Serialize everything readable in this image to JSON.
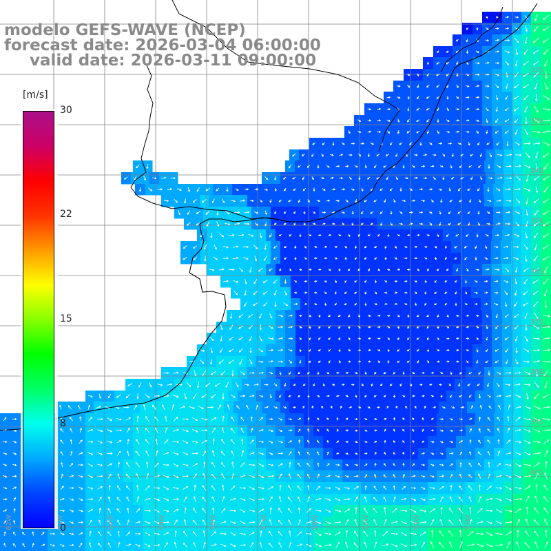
{
  "title": {
    "line1": "modelo GEFS-WAVE (NCEP)",
    "line2": "forecast date: 2026-03-04 06:00:00",
    "line3": "valid date: 2026-03-11 09:00:00"
  },
  "colorbar": {
    "unit": "[m/s]",
    "min": 0,
    "max": 30,
    "ticks": [
      "30",
      "22",
      "15",
      "8",
      "0"
    ],
    "colors": [
      "#0000ff",
      "#0044ff",
      "#00aaff",
      "#00ffee",
      "#00ff66",
      "#00ff00",
      "#88ff00",
      "#ffff00",
      "#ff9900",
      "#ff3300",
      "#ff0000",
      "#cc0066",
      "#aa1188"
    ]
  },
  "axes": {
    "lat_labels": [
      "32S",
      "33S",
      "34S",
      "35S",
      "36S",
      "37S",
      "38S",
      "39S",
      "40S"
    ],
    "lon_labels": [
      "62W",
      "61W",
      "60W",
      "59W",
      "58W",
      "57W",
      "56W",
      "55W",
      "54W",
      "53W"
    ]
  },
  "map": {
    "grid_color": "#808080",
    "coast_color": "#000000",
    "land_color": "#ffffff",
    "arrow_color": "#ffffff",
    "speed_field_rows": [
      "dddddddddddddddddddddddddddddddddddddddddddddddddddddddd",
      "ddddddddddddddddddddddddddddddddddddddddddddddddd0022488",
      "ddddddddddddddddddddddddddddddddddddddddddddddd012224688",
      "dddddddddddddddddddddddddddddddddddddddddddddd1222346788",
      "dddddddddddddddddddddddddddddddddddddddddddd112223356778",
      "ddddddddddddddddddddddddddddddddddddddddddd1222233356778",
      "ddddddddddddddddddddddddddddddddddddddddd112222233456778",
      "dddddddddddddddddddddddddddddddddddddddd2222222223456778",
      "ddddddddddddddddddddddddddddddddddddddd22222222223446778",
      "ddddddddddddddddddddddddddddddddddddd2222222222223446788",
      "dddddddddddddddddddddddddddddddddddd22222222222223445788",
      "ddddddddddddddddddddddddddddddddddd222222222222222345788",
      "dddddddddddddddddddddddddddddddd2222222222222222222345778",
      "ddddddddddddddddddddddddddddddd3222222222222222222223456778",
      "dddddddddddddd44dddddddddddddd3222222222222222222223456778",
      "ddddddddddddd344344ddddddddd3322222222222222222222223456778",
      "dddddddddddddd3444444433222222222222222222222222223456778",
      "ddddddddddddddddd44445444422222222222222222222222223456778",
      "dddddddddddddddddd444555553311111222222222222222222345678",
      "ddddddddddddddddddd44555553311111111111222222222222345678",
      "dddddddddddddddddddd455555531111111111111111122222345678",
      "dddddddddddddddddd4455555553111111111111111112222345678",
      "dddddddddddddddddd4455555553111111111111111111222345678",
      "ddddddddddddddddddddd55555531111111111111111112223455678",
      "dddddddddddddddddddddd555555311111111111111111222345678",
      "ddddddddddddddddddddddd55555511111111111111111122345678",
      "dddddddddddddddddddddddd5555531111111111111111112345678",
      "ddddddddddddddddddddddd555554311111111111111111112345678",
      "dddddddddddddddddddddd5555554311111111111111111112345678",
      "ddddddddddddddddddddd55555554311111111111111111112345678",
      "dddddddddddddddddddd555555544311111111111111111122345678",
      "ddddddddddddddddddd5556665444321111111111111111122345678",
      "ddddddddddddddddd55566666544322111111111111111111223456778",
      "ddddddddddddd55555666666544332111111111111111112223456778",
      "ddddddddd4445555566666665443321111111111111111122233456788",
      "dddddd44445555566666666654443321111111111111111222333456788",
      "3333344445555566666666665444332211111111111111222233456788",
      "3333344445555566666666666544433221111111111111222333456788",
      "3333344445555566666666666654443322111111111112223334456788",
      "3333344445555566666666666655444333211111111122233344556788",
      "3333344445555666666666666666555443332222222223334445567888",
      "3333344445555666666666666666655544443333333333444455667888",
      "3333344445555566666666666666666655555544444445555666677888",
      "3333344445555566666666666666666666666665555556666677778888",
      "3333344445555556666666666666666666677777777777777777788888",
      "3333344445555556666666666666666666777777777777777777788888",
      "3333344445555556666666666666666667777777777778888888888888",
      "3333344445555556666666666666666667777777777778888888888888"
    ]
  }
}
